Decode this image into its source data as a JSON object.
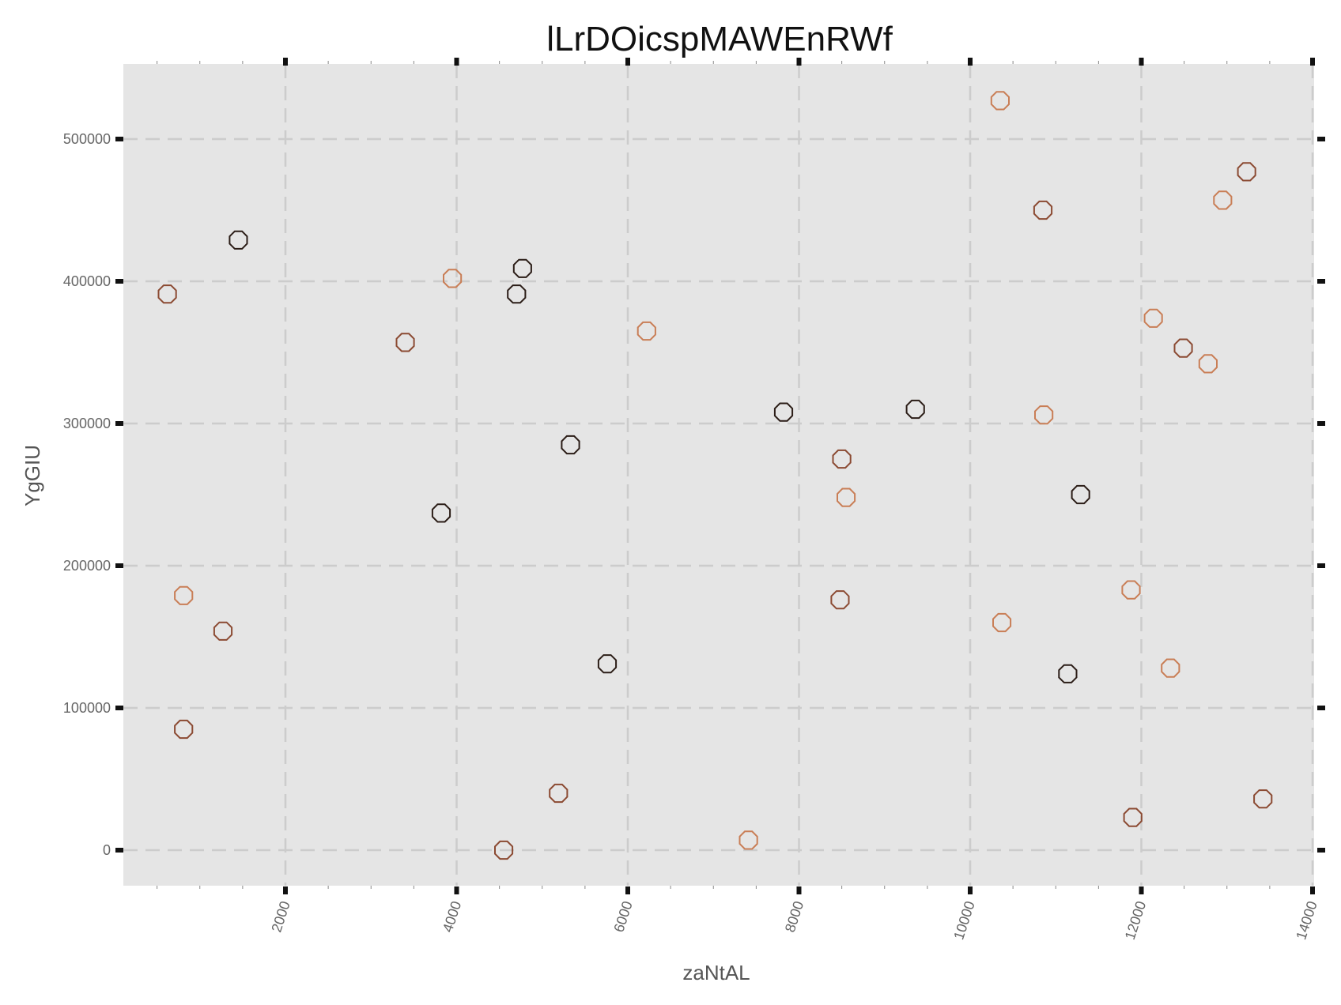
{
  "chart_data": {
    "type": "scatter",
    "title": "lLrDOicspMAWEnRWf",
    "xlabel": "zaNtAL",
    "ylabel": "YgGIU",
    "xlim": [
      0,
      14000
    ],
    "ylim": [
      -25000,
      552000
    ],
    "x_ticks": [
      2000,
      4000,
      6000,
      8000,
      10000,
      12000,
      14000
    ],
    "y_ticks": [
      0,
      100000,
      200000,
      300000,
      400000,
      500000
    ],
    "grid": true,
    "legend": "none",
    "colors": {
      "background": "#e5e5e5",
      "grid": "#cccccc",
      "dark": "#2b1d17",
      "mid": "#8b4a32",
      "light": "#c97e56"
    },
    "points": [
      {
        "x": 620,
        "y": 391000,
        "tone": "mid"
      },
      {
        "x": 810,
        "y": 85000,
        "tone": "mid"
      },
      {
        "x": 810,
        "y": 179000,
        "tone": "light"
      },
      {
        "x": 1270,
        "y": 154000,
        "tone": "mid"
      },
      {
        "x": 1450,
        "y": 429000,
        "tone": "dark"
      },
      {
        "x": 3400,
        "y": 357000,
        "tone": "mid"
      },
      {
        "x": 3820,
        "y": 237000,
        "tone": "dark"
      },
      {
        "x": 3950,
        "y": 402000,
        "tone": "light"
      },
      {
        "x": 4550,
        "y": 0,
        "tone": "mid"
      },
      {
        "x": 4700,
        "y": 391000,
        "tone": "dark"
      },
      {
        "x": 4770,
        "y": 409000,
        "tone": "dark"
      },
      {
        "x": 5190,
        "y": 40000,
        "tone": "mid"
      },
      {
        "x": 5330,
        "y": 285000,
        "tone": "dark"
      },
      {
        "x": 5760,
        "y": 131000,
        "tone": "dark"
      },
      {
        "x": 6220,
        "y": 365000,
        "tone": "light"
      },
      {
        "x": 7410,
        "y": 7000,
        "tone": "light"
      },
      {
        "x": 7820,
        "y": 308000,
        "tone": "dark"
      },
      {
        "x": 8480,
        "y": 176000,
        "tone": "mid"
      },
      {
        "x": 8500,
        "y": 275000,
        "tone": "mid"
      },
      {
        "x": 8550,
        "y": 248000,
        "tone": "light"
      },
      {
        "x": 9360,
        "y": 310000,
        "tone": "dark"
      },
      {
        "x": 10350,
        "y": 527000,
        "tone": "light"
      },
      {
        "x": 10370,
        "y": 160000,
        "tone": "light"
      },
      {
        "x": 10850,
        "y": 450000,
        "tone": "mid"
      },
      {
        "x": 10860,
        "y": 306000,
        "tone": "light"
      },
      {
        "x": 11140,
        "y": 124000,
        "tone": "dark"
      },
      {
        "x": 11290,
        "y": 250000,
        "tone": "dark"
      },
      {
        "x": 11880,
        "y": 183000,
        "tone": "light"
      },
      {
        "x": 11900,
        "y": 23000,
        "tone": "mid"
      },
      {
        "x": 12140,
        "y": 374000,
        "tone": "light"
      },
      {
        "x": 12340,
        "y": 128000,
        "tone": "light"
      },
      {
        "x": 12490,
        "y": 353000,
        "tone": "mid"
      },
      {
        "x": 12780,
        "y": 342000,
        "tone": "light"
      },
      {
        "x": 12950,
        "y": 457000,
        "tone": "light"
      },
      {
        "x": 13230,
        "y": 477000,
        "tone": "mid"
      },
      {
        "x": 13420,
        "y": 36000,
        "tone": "mid"
      }
    ]
  }
}
